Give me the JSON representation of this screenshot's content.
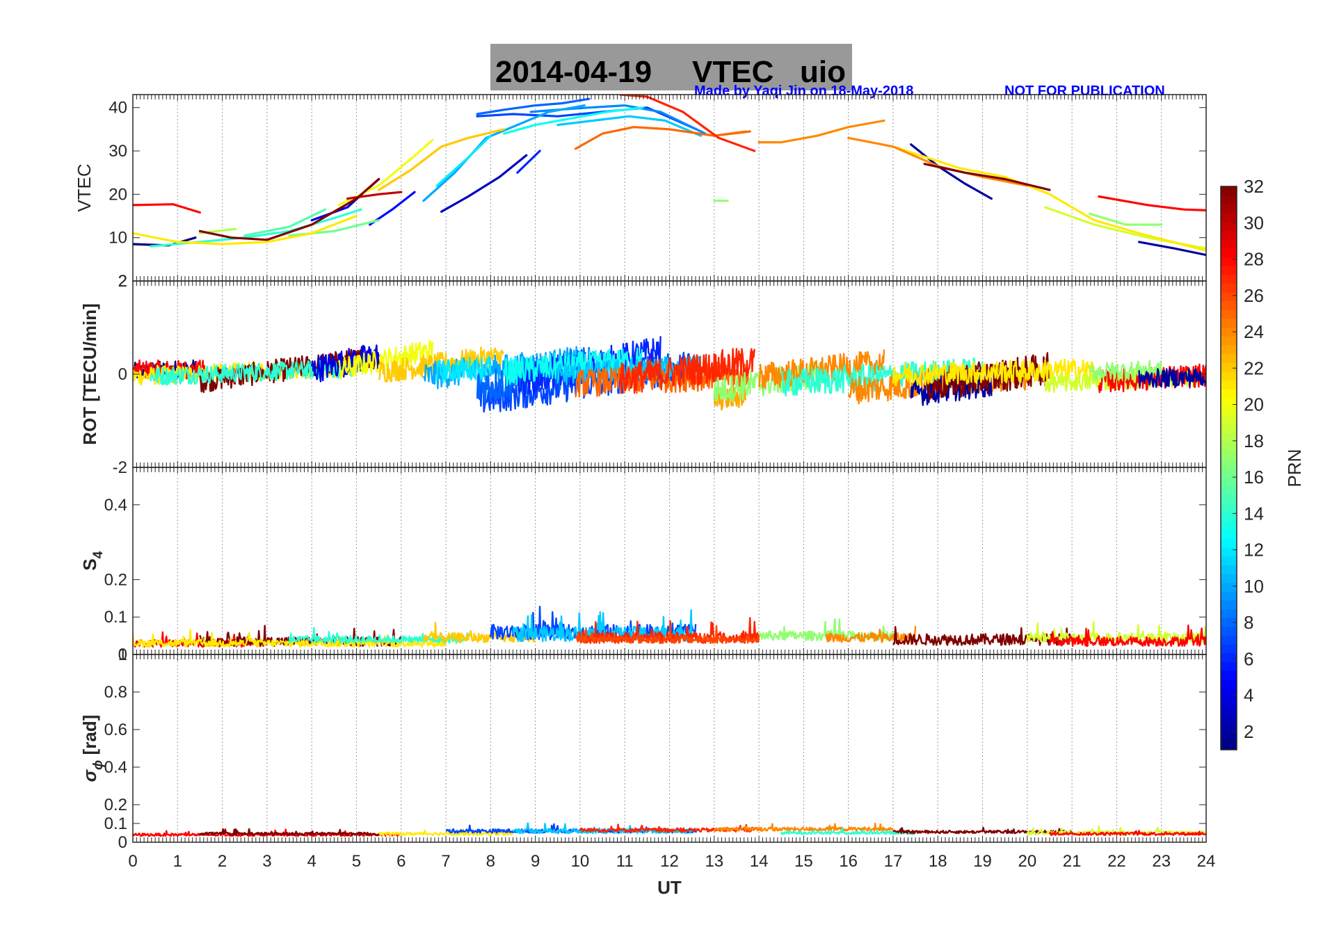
{
  "title": {
    "date": "2014-04-19",
    "quantity": "VTEC",
    "station": "uio",
    "credit": "Made by Yaqi Jin on 18-May-2018",
    "notice": "NOT FOR PUBLICATION"
  },
  "colors": {
    "title_bg": "#999999",
    "credit": "#0000ff",
    "grid": "#9a9a9a",
    "axis": "#262626"
  },
  "chart_data": [
    {
      "type": "line",
      "id": "vtec",
      "ylabel": "VTEC",
      "ylabel_bold": false,
      "ylim": [
        0,
        43
      ],
      "yticks": [
        10,
        20,
        30,
        40
      ],
      "yticklabels": [
        "10",
        "20",
        "30",
        "40"
      ],
      "extra_bottom_label": "2",
      "series": [
        {
          "prn": 1,
          "x": [
            0,
            0.8,
            1.4
          ],
          "y": [
            8.5,
            8.2,
            10
          ]
        },
        {
          "prn": 3,
          "x": [
            6.9,
            7.5,
            8.2,
            8.8
          ],
          "y": [
            16,
            19.5,
            24,
            29
          ]
        },
        {
          "prn": 4,
          "x": [
            4,
            4.8,
            5.5
          ],
          "y": [
            14,
            17,
            23.5
          ]
        },
        {
          "prn": 6,
          "x": [
            8.6,
            9.1
          ],
          "y": [
            25,
            30
          ]
        },
        {
          "prn": 5,
          "x": [
            5.3,
            5.8,
            6.3
          ],
          "y": [
            13,
            16.5,
            20.5
          ]
        },
        {
          "prn": 2,
          "x": [
            17.4,
            18,
            18.6,
            19.2
          ],
          "y": [
            31.5,
            26.5,
            22.5,
            19
          ]
        },
        {
          "prn": 2,
          "x": [
            22.5,
            23.3,
            24
          ],
          "y": [
            9,
            7.5,
            6
          ]
        },
        {
          "prn": 7,
          "x": [
            7.7,
            8.5,
            9.5,
            10.5,
            11.5,
            12.6
          ],
          "y": [
            38,
            38.5,
            38,
            39,
            40,
            35
          ]
        },
        {
          "prn": 8,
          "x": [
            7.7,
            8.3,
            9.0,
            9.6,
            10.2
          ],
          "y": [
            38.5,
            39.5,
            40.5,
            41,
            42
          ]
        },
        {
          "prn": 9,
          "x": [
            8.9,
            9.5,
            10.2,
            11,
            11.8,
            12.8
          ],
          "y": [
            39,
            39.5,
            40,
            40.5,
            39,
            34
          ]
        },
        {
          "prn": 10,
          "x": [
            6.5,
            7.2,
            7.9,
            8.6,
            9.3,
            10.1
          ],
          "y": [
            18.5,
            25,
            33,
            36,
            39,
            40.5
          ]
        },
        {
          "prn": 11,
          "x": [
            9.5,
            10.3,
            11.1,
            11.9,
            12.7
          ],
          "y": [
            36,
            37,
            38,
            37,
            33.5
          ]
        },
        {
          "prn": 12,
          "x": [
            6.8,
            7.5,
            8.0
          ],
          "y": [
            22,
            28.5,
            33.5
          ]
        },
        {
          "prn": 13,
          "x": [
            8.3,
            9.0,
            9.8,
            10.6,
            11.4
          ],
          "y": [
            34,
            36,
            37.5,
            39,
            40
          ]
        },
        {
          "prn": 14,
          "x": [
            0.4,
            1.5,
            2.5,
            3.5,
            4.5,
            5.1
          ],
          "y": [
            8,
            9,
            10,
            11.5,
            14.5,
            16.5
          ]
        },
        {
          "prn": 15,
          "x": [
            2.5,
            3.5,
            4.3
          ],
          "y": [
            10.5,
            12.5,
            16.5
          ]
        },
        {
          "prn": 16,
          "x": [
            3.5,
            4.5,
            5.5
          ],
          "y": [
            10.5,
            11.5,
            14
          ]
        },
        {
          "prn": 17,
          "x": [
            21.4,
            22.2,
            23
          ],
          "y": [
            15.5,
            13,
            13
          ]
        },
        {
          "prn": 17,
          "x": [
            13.0,
            13.3
          ],
          "y": [
            18.5,
            18.5
          ]
        },
        {
          "prn": 18,
          "x": [
            1.5,
            2.3
          ],
          "y": [
            11,
            12
          ]
        },
        {
          "prn": 19,
          "x": [
            20.4,
            21.5,
            22.7,
            24
          ],
          "y": [
            17,
            13,
            10,
            7.5
          ]
        },
        {
          "prn": 20,
          "x": [
            4.6,
            5.5,
            6.2,
            6.7
          ],
          "y": [
            17.5,
            22,
            28,
            32.5
          ]
        },
        {
          "prn": 21,
          "x": [
            0,
            1,
            2,
            3,
            4,
            5
          ],
          "y": [
            11,
            9,
            8.5,
            9,
            11,
            15
          ]
        },
        {
          "prn": 21,
          "x": [
            17.0,
            18.5,
            19.5,
            20.5,
            21.5,
            22.5,
            24
          ],
          "y": [
            31,
            26,
            24,
            20,
            14,
            11,
            7
          ]
        },
        {
          "prn": 22,
          "x": [
            5.5,
            6.2,
            6.9,
            7.5,
            8.3
          ],
          "y": [
            21,
            25.5,
            31,
            33,
            35
          ]
        },
        {
          "prn": 23,
          "x": [
            13.0,
            13.7
          ],
          "y": [
            33.5,
            34.5
          ]
        },
        {
          "prn": 24,
          "x": [
            14,
            14.5,
            15.3,
            16.0,
            16.8
          ],
          "y": [
            32,
            32,
            33.5,
            35.5,
            37
          ]
        },
        {
          "prn": 24,
          "x": [
            16.0,
            17.0,
            18.0,
            19.0,
            20.0
          ],
          "y": [
            33,
            31,
            26.5,
            24,
            22
          ]
        },
        {
          "prn": 25,
          "x": [
            9.9,
            10.5,
            11.2,
            12.0,
            13.0,
            13.8
          ],
          "y": [
            30.5,
            34,
            35.5,
            35,
            33.5,
            34.5
          ]
        },
        {
          "prn": 27,
          "x": [
            10.9,
            11.5,
            12.3,
            13.1,
            13.9
          ],
          "y": [
            43,
            42.5,
            39,
            33,
            30
          ]
        },
        {
          "prn": 28,
          "x": [
            0,
            0.9,
            1.5
          ],
          "y": [
            17.5,
            17.7,
            15.8
          ]
        },
        {
          "prn": 28,
          "x": [
            21.6,
            22.7,
            23.5,
            24
          ],
          "y": [
            19.5,
            17.5,
            16.5,
            16.3
          ]
        },
        {
          "prn": 30,
          "x": [
            4.8,
            5.5,
            6.0
          ],
          "y": [
            19,
            20,
            20.5
          ]
        },
        {
          "prn": 32,
          "x": [
            1.5,
            2.2,
            3.0,
            4.0,
            5.0,
            5.5
          ],
          "y": [
            11.5,
            10,
            9.5,
            13,
            19,
            23.5
          ]
        },
        {
          "prn": 32,
          "x": [
            17.7,
            18.6,
            19.5,
            20.5
          ],
          "y": [
            27,
            25,
            23.5,
            21
          ]
        }
      ]
    },
    {
      "type": "scatter",
      "id": "rot",
      "ylabel": "ROT [TECU/min]",
      "ylabel_bold": true,
      "ylim": [
        -2,
        2
      ],
      "yticks": [
        2,
        0,
        -2
      ],
      "yticklabels": [
        "2",
        "0",
        "-2"
      ],
      "segments": [
        {
          "prn": 1,
          "x0": 0.0,
          "x1": 1.4,
          "base": 0.05,
          "slope": 0.05,
          "noise": 0.2
        },
        {
          "prn": 28,
          "x0": 0.0,
          "x1": 1.6,
          "base": 0.1,
          "slope": 0.0,
          "noise": 0.2
        },
        {
          "prn": 21,
          "x0": 0.0,
          "x1": 5.0,
          "base": -0.05,
          "slope": 0.04,
          "noise": 0.2
        },
        {
          "prn": 32,
          "x0": 1.5,
          "x1": 5.5,
          "base": -0.15,
          "slope": 0.13,
          "noise": 0.25
        },
        {
          "prn": 14,
          "x0": 0.4,
          "x1": 5.1,
          "base": -0.05,
          "slope": 0.04,
          "noise": 0.2
        },
        {
          "prn": 4,
          "x0": 4.0,
          "x1": 5.5,
          "base": 0.1,
          "slope": 0.2,
          "noise": 0.3
        },
        {
          "prn": 20,
          "x0": 4.6,
          "x1": 6.7,
          "base": 0.1,
          "slope": 0.2,
          "noise": 0.25
        },
        {
          "prn": 22,
          "x0": 5.5,
          "x1": 8.3,
          "base": 0.05,
          "slope": 0.12,
          "noise": 0.25
        },
        {
          "prn": 10,
          "x0": 6.5,
          "x1": 10.1,
          "base": -0.05,
          "slope": 0.1,
          "noise": 0.3
        },
        {
          "prn": 12,
          "x0": 6.8,
          "x1": 8.0,
          "base": 0.05,
          "slope": 0.1,
          "noise": 0.25
        },
        {
          "prn": 7,
          "x0": 7.7,
          "x1": 12.6,
          "base": -0.55,
          "slope": 0.15,
          "noise": 0.35
        },
        {
          "prn": 8,
          "x0": 7.7,
          "x1": 10.2,
          "base": -0.3,
          "slope": 0.2,
          "noise": 0.4
        },
        {
          "prn": 6,
          "x0": 8.6,
          "x1": 11.8,
          "base": -0.15,
          "slope": 0.2,
          "noise": 0.35
        },
        {
          "prn": 13,
          "x0": 8.3,
          "x1": 11.4,
          "base": 0.05,
          "slope": 0.08,
          "noise": 0.3
        },
        {
          "prn": 11,
          "x0": 9.5,
          "x1": 12.7,
          "base": 0.0,
          "slope": 0.05,
          "noise": 0.25
        },
        {
          "prn": 25,
          "x0": 9.9,
          "x1": 13.8,
          "base": -0.2,
          "slope": 0.05,
          "noise": 0.3
        },
        {
          "prn": 27,
          "x0": 10.9,
          "x1": 13.9,
          "base": -0.1,
          "slope": 0.12,
          "noise": 0.35
        },
        {
          "prn": 23,
          "x0": 13.0,
          "x1": 13.7,
          "base": -0.55,
          "slope": 0.1,
          "noise": 0.25
        },
        {
          "prn": 17,
          "x0": 13.0,
          "x1": 15.5,
          "base": -0.35,
          "slope": 0.15,
          "noise": 0.3
        },
        {
          "prn": 24,
          "x0": 14.0,
          "x1": 16.8,
          "base": -0.05,
          "slope": 0.1,
          "noise": 0.3
        },
        {
          "prn": 14,
          "x0": 14.5,
          "x1": 19.0,
          "base": -0.2,
          "slope": 0.06,
          "noise": 0.3
        },
        {
          "prn": 24,
          "x0": 16.0,
          "x1": 20.0,
          "base": -0.35,
          "slope": 0.08,
          "noise": 0.3
        },
        {
          "prn": 2,
          "x0": 17.4,
          "x1": 19.2,
          "base": -0.4,
          "slope": 0.12,
          "noise": 0.3
        },
        {
          "prn": 32,
          "x0": 17.7,
          "x1": 20.5,
          "base": -0.25,
          "slope": 0.13,
          "noise": 0.35
        },
        {
          "prn": 21,
          "x0": 17.0,
          "x1": 21.5,
          "base": 0.0,
          "slope": 0.02,
          "noise": 0.25
        },
        {
          "prn": 19,
          "x0": 20.4,
          "x1": 24.0,
          "base": -0.2,
          "slope": 0.04,
          "noise": 0.2
        },
        {
          "prn": 28,
          "x0": 21.6,
          "x1": 24.0,
          "base": -0.15,
          "slope": 0.05,
          "noise": 0.25
        },
        {
          "prn": 17,
          "x0": 21.4,
          "x1": 23.0,
          "base": 0.05,
          "slope": 0.03,
          "noise": 0.2
        },
        {
          "prn": 2,
          "x0": 22.5,
          "x1": 24.0,
          "base": -0.1,
          "slope": 0.03,
          "noise": 0.2
        }
      ]
    },
    {
      "type": "scatter",
      "id": "s4",
      "ylabel": "S",
      "ylabel_sub": "4",
      "ylabel_bold": true,
      "ylim": [
        0,
        0.5
      ],
      "yticks": [
        0.1,
        0.2,
        0.4
      ],
      "yticklabels": [
        "0.1",
        "0.2",
        "0.4"
      ],
      "extra_bottom_label": "0",
      "segments": [
        {
          "prn": 28,
          "x0": 0.0,
          "x1": 3.0,
          "level": 0.03,
          "noise": 0.02
        },
        {
          "prn": 32,
          "x0": 1.5,
          "x1": 6.0,
          "level": 0.035,
          "noise": 0.025
        },
        {
          "prn": 21,
          "x0": 0.0,
          "x1": 7.0,
          "level": 0.03,
          "noise": 0.02
        },
        {
          "prn": 14,
          "x0": 3.5,
          "x1": 7.5,
          "level": 0.04,
          "noise": 0.02
        },
        {
          "prn": 22,
          "x0": 6.5,
          "x1": 9.0,
          "level": 0.045,
          "noise": 0.025
        },
        {
          "prn": 7,
          "x0": 8.0,
          "x1": 12.6,
          "level": 0.06,
          "noise": 0.04
        },
        {
          "prn": 11,
          "x0": 8.5,
          "x1": 12.5,
          "level": 0.055,
          "noise": 0.04
        },
        {
          "prn": 27,
          "x0": 10.0,
          "x1": 14.0,
          "level": 0.045,
          "noise": 0.03
        },
        {
          "prn": 17,
          "x0": 14.0,
          "x1": 17.0,
          "level": 0.05,
          "noise": 0.025
        },
        {
          "prn": 24,
          "x0": 15.5,
          "x1": 17.5,
          "level": 0.045,
          "noise": 0.025
        },
        {
          "prn": 32,
          "x0": 17.0,
          "x1": 21.0,
          "level": 0.04,
          "noise": 0.03
        },
        {
          "prn": 19,
          "x0": 20.0,
          "x1": 24.0,
          "level": 0.045,
          "noise": 0.025
        },
        {
          "prn": 28,
          "x0": 20.5,
          "x1": 24.0,
          "level": 0.035,
          "noise": 0.025
        },
        {
          "prn": 26,
          "x0": 9.9,
          "x1": 14.0,
          "level": 0.04,
          "noise": 0.02
        }
      ]
    },
    {
      "type": "scatter",
      "id": "sigma_phi",
      "ylabel": "σ",
      "ylabel_sub": "ϕ",
      "ylabel_suffix": " [rad]",
      "ylabel_bold": true,
      "xlabel": "UT",
      "ylim": [
        0,
        1
      ],
      "yticks": [
        0,
        0.1,
        0.2,
        0.4,
        0.6,
        0.8
      ],
      "yticklabels": [
        "0",
        "0.1",
        "0.2",
        "0.4",
        "0.6",
        "0.8"
      ],
      "extra_top_label": "1",
      "xlim": [
        0,
        24
      ],
      "xticks": [
        0,
        1,
        2,
        3,
        4,
        5,
        6,
        7,
        8,
        9,
        10,
        11,
        12,
        13,
        14,
        15,
        16,
        17,
        18,
        19,
        20,
        21,
        22,
        23,
        24
      ],
      "xticklabels": [
        "0",
        "1",
        "2",
        "3",
        "4",
        "5",
        "6",
        "7",
        "8",
        "9",
        "10",
        "11",
        "12",
        "13",
        "14",
        "15",
        "16",
        "17",
        "18",
        "19",
        "20",
        "21",
        "22",
        "23",
        "24"
      ],
      "segments": [
        {
          "prn": 28,
          "x0": 0.0,
          "x1": 6.0,
          "level": 0.04,
          "noise": 0.015
        },
        {
          "prn": 32,
          "x0": 1.5,
          "x1": 5.5,
          "level": 0.045,
          "noise": 0.015
        },
        {
          "prn": 21,
          "x0": 5.5,
          "x1": 8.5,
          "level": 0.045,
          "noise": 0.015
        },
        {
          "prn": 7,
          "x0": 7.0,
          "x1": 12.6,
          "level": 0.06,
          "noise": 0.02
        },
        {
          "prn": 11,
          "x0": 8.5,
          "x1": 12.5,
          "level": 0.06,
          "noise": 0.025
        },
        {
          "prn": 27,
          "x0": 10.0,
          "x1": 14.0,
          "level": 0.065,
          "noise": 0.02
        },
        {
          "prn": 24,
          "x0": 13.0,
          "x1": 17.0,
          "level": 0.07,
          "noise": 0.02
        },
        {
          "prn": 14,
          "x0": 14.5,
          "x1": 17.5,
          "level": 0.05,
          "noise": 0.015
        },
        {
          "prn": 32,
          "x0": 17.0,
          "x1": 21.0,
          "level": 0.055,
          "noise": 0.015
        },
        {
          "prn": 19,
          "x0": 20.0,
          "x1": 24.0,
          "level": 0.05,
          "noise": 0.02
        },
        {
          "prn": 28,
          "x0": 20.5,
          "x1": 24.0,
          "level": 0.045,
          "noise": 0.015
        }
      ]
    }
  ],
  "colorbar": {
    "label": "PRN",
    "range": [
      1,
      32
    ],
    "ticks": [
      2,
      4,
      6,
      8,
      10,
      12,
      14,
      16,
      18,
      20,
      22,
      24,
      26,
      28,
      30,
      32
    ],
    "ticklabels": [
      "2",
      "4",
      "6",
      "8",
      "10",
      "12",
      "14",
      "16",
      "18",
      "20",
      "22",
      "24",
      "26",
      "28",
      "30",
      "32"
    ],
    "colormap": "jet"
  }
}
